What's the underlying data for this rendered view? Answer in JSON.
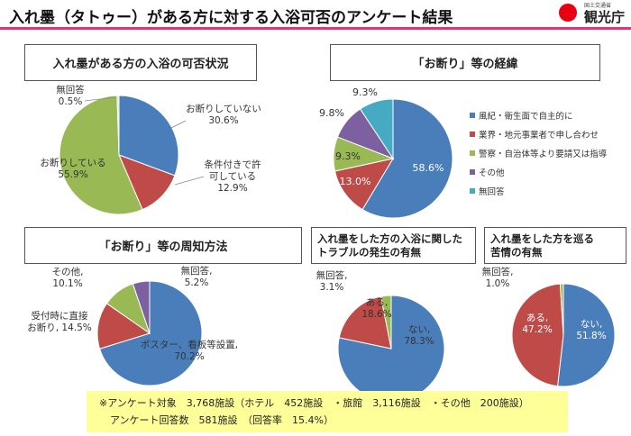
{
  "title": "入れ墨（タトゥー）がある方に対する入浴可否のアンケート結果",
  "logo": {
    "small": "国土交通省",
    "text": "観光庁"
  },
  "colors": {
    "blue": "#4a7ebb",
    "red": "#be4b48",
    "green": "#98b954",
    "purple": "#7d60a0",
    "teal": "#46aac5",
    "footer": "#ffff99",
    "accent": "#e8336e"
  },
  "chart_data": [
    {
      "type": "pie",
      "title": "入れ墨がある方の入浴の可否状況",
      "categories": [
        "お断りしていない",
        "条件付きで許可している",
        "お断りしている",
        "無回答"
      ],
      "values": [
        30.6,
        12.9,
        55.9,
        0.5
      ],
      "labels": [
        "お断りしていない\n30.6%",
        "条件付きで許\n可している\n12.9%",
        "お断りしている\n55.9%",
        "無回答\n0.5%"
      ]
    },
    {
      "type": "pie",
      "title": "「お断り」等の経緯",
      "categories": [
        "風紀・衛生面で自主的に",
        "業界・地元事業者で申し合わせ",
        "警察・自治体等より要請又は指導",
        "その他",
        "無回答"
      ],
      "values": [
        58.6,
        13.0,
        9.3,
        9.8,
        9.3
      ],
      "labels": [
        "58.6%",
        "13.0%",
        "9.3%",
        "9.8%",
        "9.3%"
      ],
      "legend": "right"
    },
    {
      "type": "pie",
      "title": "「お断り」等の周知方法",
      "categories": [
        "ポスター、看板等設置",
        "受付時に直接お断り",
        "その他",
        "無回答"
      ],
      "values": [
        70.2,
        14.5,
        10.1,
        5.2
      ],
      "labels": [
        "ポスター、看板等設置,\n70.2%",
        "受付時に直接\nお断り, 14.5%",
        "その他,\n10.1%",
        "無回答,\n5.2%"
      ]
    },
    {
      "type": "pie",
      "title": "入れ墨をした方の入浴に関した\nトラブルの発生の有無",
      "categories": [
        "ない",
        "ある",
        "無回答"
      ],
      "values": [
        78.3,
        18.6,
        3.1
      ],
      "labels": [
        "ない,\n78.3%",
        "ある,\n18.6%",
        "無回答,\n3.1%"
      ]
    },
    {
      "type": "pie",
      "title": "入れ墨をした方を巡る\n苦情の有無",
      "categories": [
        "ない",
        "ある",
        "無回答"
      ],
      "values": [
        51.8,
        47.2,
        1.0
      ],
      "labels": [
        "ない,\n51.8%",
        "ある,\n47.2%",
        "無回答,\n1.0%"
      ]
    }
  ],
  "footer": {
    "line1": "※アンケート対象　3,768施設（ホテル　452施設　・旅館　3,116施設　・その他　200施設）",
    "line2": "アンケート回答数　581施設　（回答率　15.4%）"
  }
}
